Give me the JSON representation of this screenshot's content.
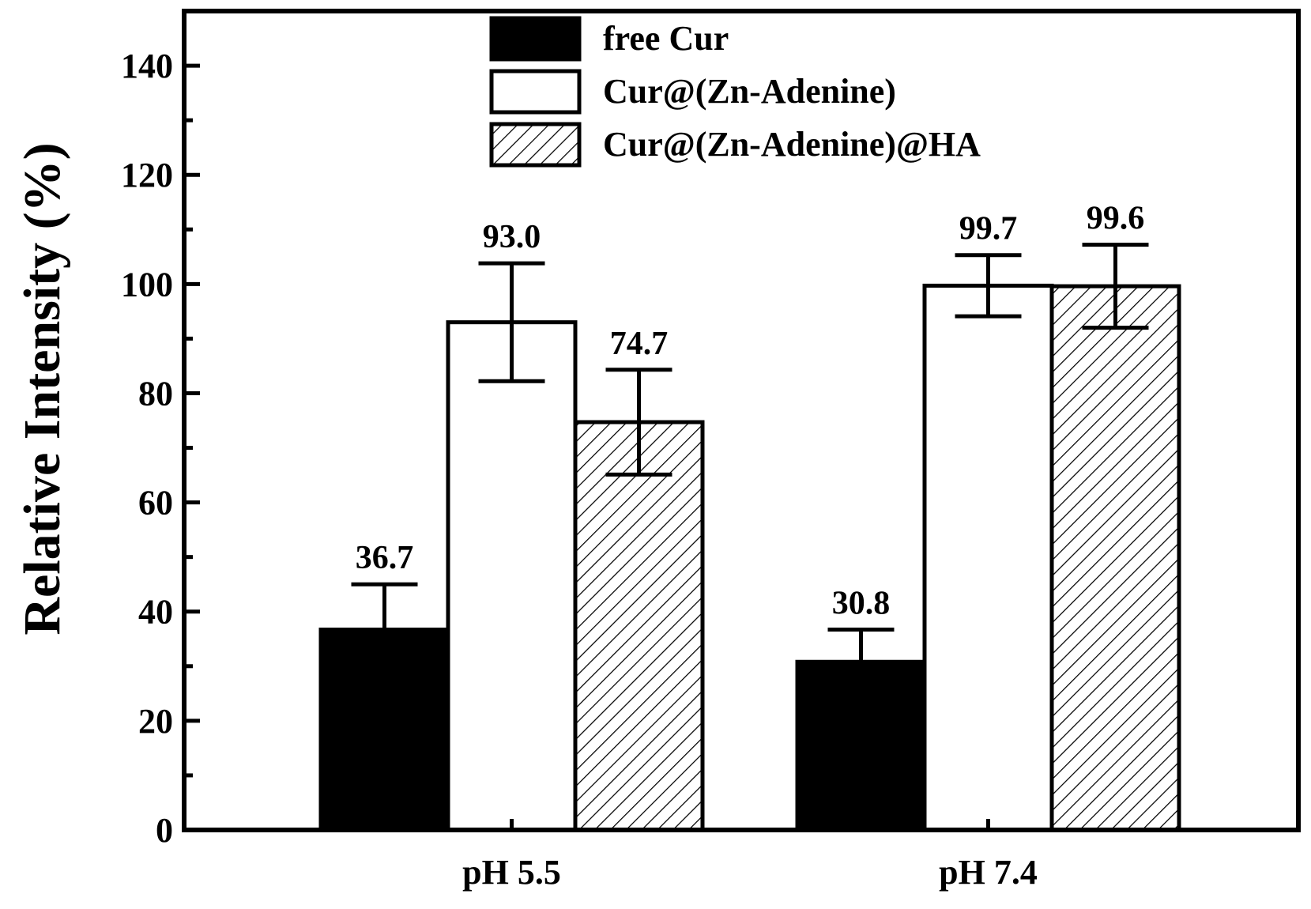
{
  "chart_data": {
    "type": "bar",
    "title": "",
    "xlabel": "",
    "ylabel": "Relative Intensity (%)",
    "ylim": [
      0,
      150
    ],
    "yticks": [
      0,
      20,
      40,
      60,
      80,
      100,
      120,
      140
    ],
    "y_minor_step": 10,
    "categories": [
      "pH 5.5",
      "pH 7.4"
    ],
    "series": [
      {
        "name": "free Cur",
        "fill": "solid",
        "color": "#000000",
        "values": [
          36.7,
          30.8
        ],
        "errors": [
          8.3,
          5.9
        ],
        "labels": [
          "36.7",
          "30.8"
        ]
      },
      {
        "name": "Cur@(Zn-Adenine)",
        "fill": "empty",
        "color": "#ffffff",
        "values": [
          93.0,
          99.7
        ],
        "errors": [
          10.8,
          5.6
        ],
        "labels": [
          "93.0",
          "99.7"
        ]
      },
      {
        "name": "Cur@(Zn-Adenine)@HA",
        "fill": "hatched",
        "color": "#ffffff",
        "values": [
          74.7,
          99.6
        ],
        "errors": [
          9.6,
          7.6
        ],
        "labels": [
          "74.7",
          "99.6"
        ]
      }
    ],
    "legend_position": "top-center",
    "grid": false
  }
}
